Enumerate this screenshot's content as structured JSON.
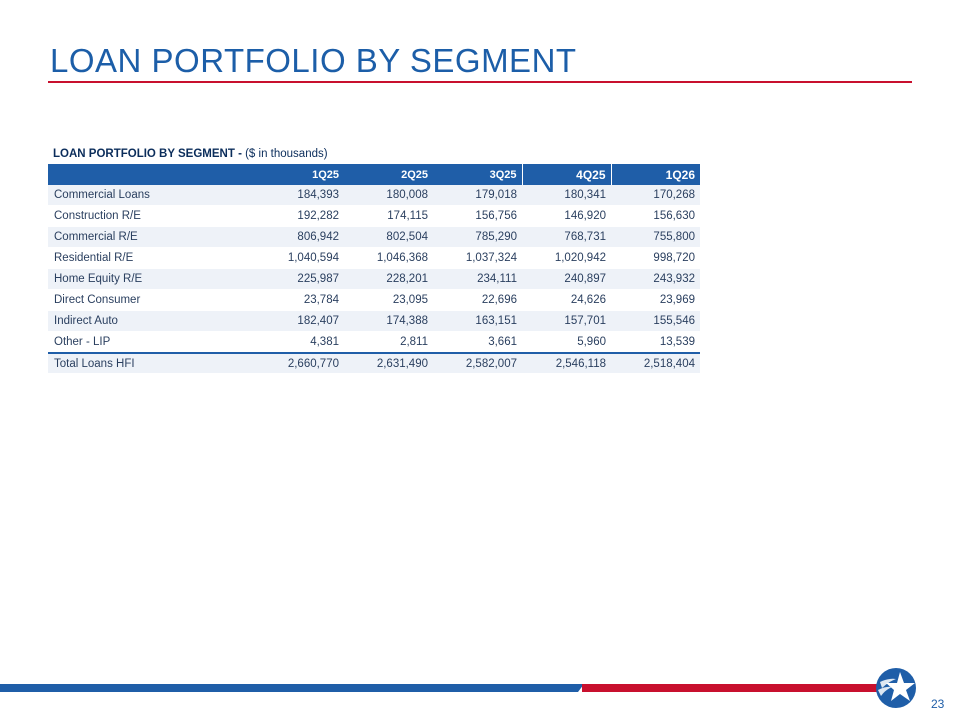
{
  "slide": {
    "title": "LOAN PORTFOLIO BY SEGMENT",
    "page_number": "23",
    "colors": {
      "brand_blue": "#1f5ea8",
      "brand_red": "#c8102e"
    },
    "logo_icon": "star-logo-icon"
  },
  "table": {
    "caption_bold": "LOAN PORTFOLIO BY SEGMENT -",
    "caption_rest": " ($ in thousands)",
    "headers": [
      "1Q25",
      "2Q25",
      "3Q25",
      "4Q25",
      "1Q26"
    ],
    "rows": [
      {
        "label": "Commercial Loans",
        "values": [
          "184,393",
          "180,008",
          "179,018",
          "180,341",
          "170,268"
        ]
      },
      {
        "label": "Construction R/E",
        "values": [
          "192,282",
          "174,115",
          "156,756",
          "146,920",
          "156,630"
        ]
      },
      {
        "label": "Commercial R/E",
        "values": [
          "806,942",
          "802,504",
          "785,290",
          "768,731",
          "755,800"
        ]
      },
      {
        "label": "Residential R/E",
        "values": [
          "1,040,594",
          "1,046,368",
          "1,037,324",
          "1,020,942",
          "998,720"
        ]
      },
      {
        "label": "Home Equity R/E",
        "values": [
          "225,987",
          "228,201",
          "234,111",
          "240,897",
          "243,932"
        ]
      },
      {
        "label": "Direct Consumer",
        "values": [
          "23,784",
          "23,095",
          "22,696",
          "24,626",
          "23,969"
        ]
      },
      {
        "label": "Indirect Auto",
        "values": [
          "182,407",
          "174,388",
          "163,151",
          "157,701",
          "155,546"
        ]
      },
      {
        "label": "Other - LIP",
        "values": [
          "4,381",
          "2,811",
          "3,661",
          "5,960",
          "13,539"
        ]
      }
    ],
    "total": {
      "label": "Total Loans HFI",
      "values": [
        "2,660,770",
        "2,631,490",
        "2,582,007",
        "2,546,118",
        "2,518,404"
      ]
    }
  }
}
